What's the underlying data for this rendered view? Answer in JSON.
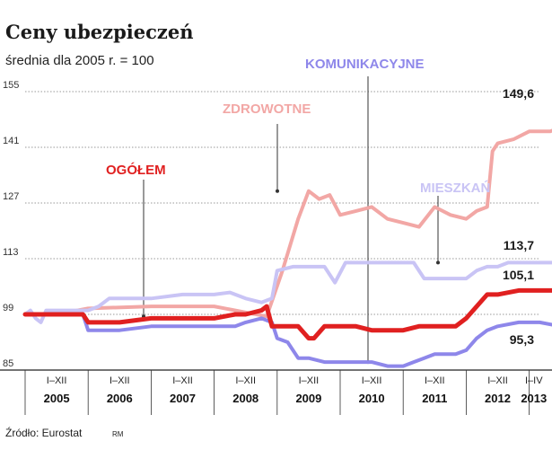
{
  "header": {
    "title": "Ceny ubezpieczeń",
    "subtitle": "średnia dla 2005 r. = 100"
  },
  "footer": {
    "source": "Źródło: Eurostat",
    "initials": "RM"
  },
  "chart_data": {
    "type": "line",
    "title": "Ceny ubezpieczeń",
    "subtitle": "średnia dla 2005 r. = 100",
    "xlabel": "",
    "ylabel": "",
    "ylim": [
      85,
      155
    ],
    "yticks": [
      85,
      99,
      113,
      127,
      141,
      155
    ],
    "grid": true,
    "legend": "inline labels",
    "x_periods": [
      {
        "period": "I–XII",
        "year": "2005"
      },
      {
        "period": "I–XII",
        "year": "2006"
      },
      {
        "period": "I–XII",
        "year": "2007"
      },
      {
        "period": "I–XII",
        "year": "2008"
      },
      {
        "period": "I–XII",
        "year": "2009"
      },
      {
        "period": "I–XII",
        "year": "2010"
      },
      {
        "period": "I–XII",
        "year": "2011"
      },
      {
        "period": "I–XII",
        "year": "2012"
      },
      {
        "period": "I–IV",
        "year": "2013"
      }
    ],
    "x_unit": "months since Jan 2005",
    "series": [
      {
        "name": "ZDROWOTNE",
        "color": "#f2a7a5",
        "end_label": "149,6",
        "points": [
          [
            0,
            99
          ],
          [
            6,
            99
          ],
          [
            12,
            100.5
          ],
          [
            24,
            101
          ],
          [
            36,
            101
          ],
          [
            42,
            99.5
          ],
          [
            46,
            98.5
          ],
          [
            49,
            110
          ],
          [
            52,
            123
          ],
          [
            54,
            130
          ],
          [
            56,
            128
          ],
          [
            58,
            129
          ],
          [
            60,
            124
          ],
          [
            63,
            125
          ],
          [
            66,
            126
          ],
          [
            69,
            123
          ],
          [
            72,
            122
          ],
          [
            75,
            121
          ],
          [
            78,
            126
          ],
          [
            81,
            124
          ],
          [
            84,
            123
          ],
          [
            86,
            125
          ],
          [
            88,
            126
          ],
          [
            89,
            140
          ],
          [
            90,
            142
          ],
          [
            93,
            143
          ],
          [
            96,
            145
          ],
          [
            100,
            145
          ],
          [
            104,
            147
          ],
          [
            108,
            147.5
          ],
          [
            112,
            148
          ],
          [
            116,
            149
          ],
          [
            120,
            150
          ],
          [
            124,
            149.6
          ]
        ]
      },
      {
        "name": "MIESZKAŃ",
        "color": "#c9c4f5",
        "end_label": "113,7",
        "points": [
          [
            0,
            99
          ],
          [
            1,
            100
          ],
          [
            2,
            98
          ],
          [
            3,
            97
          ],
          [
            4,
            100
          ],
          [
            6,
            100
          ],
          [
            8,
            100
          ],
          [
            10,
            100
          ],
          [
            12,
            100
          ],
          [
            14,
            101
          ],
          [
            16,
            103
          ],
          [
            18,
            103
          ],
          [
            20,
            103
          ],
          [
            24,
            103
          ],
          [
            30,
            104
          ],
          [
            36,
            104
          ],
          [
            39,
            104.5
          ],
          [
            42,
            103
          ],
          [
            45,
            102
          ],
          [
            47,
            103
          ],
          [
            48,
            110
          ],
          [
            51,
            111
          ],
          [
            53,
            111
          ],
          [
            55,
            111
          ],
          [
            57,
            111
          ],
          [
            59,
            107
          ],
          [
            61,
            112
          ],
          [
            63,
            112
          ],
          [
            65,
            112
          ],
          [
            67,
            112
          ],
          [
            70,
            112
          ],
          [
            72,
            112
          ],
          [
            74,
            112
          ],
          [
            76,
            108
          ],
          [
            78,
            108
          ],
          [
            80,
            108
          ],
          [
            82,
            108
          ],
          [
            84,
            108
          ],
          [
            86,
            110
          ],
          [
            88,
            111
          ],
          [
            90,
            111
          ],
          [
            92,
            112
          ],
          [
            96,
            112
          ],
          [
            100,
            112
          ],
          [
            104,
            112
          ],
          [
            108,
            112.5
          ],
          [
            112,
            113
          ],
          [
            116,
            113.5
          ],
          [
            120,
            113.5
          ],
          [
            124,
            113.7
          ]
        ]
      },
      {
        "name": "OGÓŁEM",
        "color": "#e02020",
        "end_label": "105,1",
        "points": [
          [
            0,
            99
          ],
          [
            6,
            99
          ],
          [
            11,
            99
          ],
          [
            12,
            97
          ],
          [
            18,
            97
          ],
          [
            24,
            98
          ],
          [
            30,
            98
          ],
          [
            36,
            98
          ],
          [
            40,
            99
          ],
          [
            42,
            99
          ],
          [
            45,
            100
          ],
          [
            46,
            101
          ],
          [
            47,
            96
          ],
          [
            50,
            96
          ],
          [
            52,
            96
          ],
          [
            54,
            93
          ],
          [
            55,
            93
          ],
          [
            57,
            96
          ],
          [
            60,
            96
          ],
          [
            63,
            96
          ],
          [
            66,
            95
          ],
          [
            69,
            95
          ],
          [
            72,
            95
          ],
          [
            75,
            96
          ],
          [
            78,
            96
          ],
          [
            80,
            96
          ],
          [
            82,
            96
          ],
          [
            84,
            98
          ],
          [
            86,
            101
          ],
          [
            88,
            104
          ],
          [
            90,
            104
          ],
          [
            94,
            105
          ],
          [
            98,
            105
          ],
          [
            102,
            105
          ],
          [
            106,
            105
          ],
          [
            110,
            105
          ],
          [
            114,
            105
          ],
          [
            118,
            105
          ],
          [
            122,
            105
          ],
          [
            124,
            105.1
          ]
        ]
      },
      {
        "name": "KOMUNIKACYJNE",
        "color": "#8e87ea",
        "end_label": "95,3",
        "points": [
          [
            0,
            99
          ],
          [
            6,
            99
          ],
          [
            11,
            99
          ],
          [
            12,
            95
          ],
          [
            18,
            95
          ],
          [
            24,
            96
          ],
          [
            30,
            96
          ],
          [
            36,
            96
          ],
          [
            40,
            96
          ],
          [
            42,
            97
          ],
          [
            45,
            98
          ],
          [
            47,
            97
          ],
          [
            48,
            93
          ],
          [
            50,
            92
          ],
          [
            52,
            88
          ],
          [
            54,
            88
          ],
          [
            57,
            87
          ],
          [
            60,
            87
          ],
          [
            63,
            87
          ],
          [
            66,
            87
          ],
          [
            69,
            86
          ],
          [
            72,
            86
          ],
          [
            74,
            87
          ],
          [
            76,
            88
          ],
          [
            78,
            89
          ],
          [
            80,
            89
          ],
          [
            82,
            89
          ],
          [
            84,
            90
          ],
          [
            86,
            93
          ],
          [
            88,
            95
          ],
          [
            90,
            96
          ],
          [
            94,
            97
          ],
          [
            98,
            97
          ],
          [
            102,
            96
          ],
          [
            106,
            96
          ],
          [
            110,
            95
          ],
          [
            114,
            95
          ],
          [
            118,
            95
          ],
          [
            122,
            95.3
          ],
          [
            124,
            95.3
          ]
        ]
      }
    ]
  }
}
